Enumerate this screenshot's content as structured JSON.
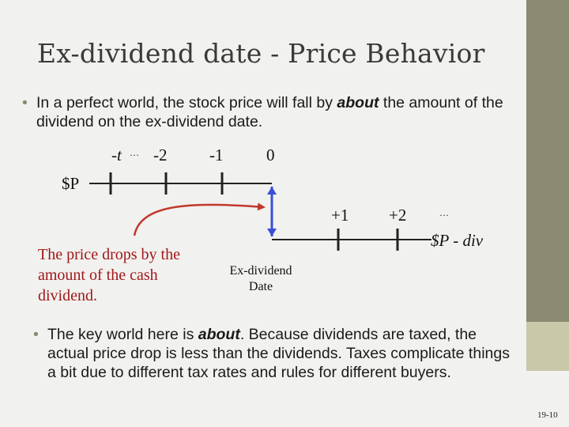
{
  "title": "Ex-dividend date - Price Behavior",
  "bullets": {
    "first": {
      "before": "In a perfect world, the stock price will fall by ",
      "emphasis": "about",
      "after": " the amount of the dividend on the ex-dividend date."
    },
    "second": {
      "before": "The key world here is ",
      "emphasis": "about",
      "after": ". Because dividends are taxed, the actual price drop is less than the dividends. Taxes complicate things a bit due to different tax rates and rules for different buyers."
    }
  },
  "timeline": {
    "upper_labels": {
      "neg_t": "-t",
      "ellipsis": "…",
      "neg2": "-2",
      "neg1": "-1",
      "zero": "0"
    },
    "upper_price": "$P",
    "lower_labels": {
      "plus1": "+1",
      "plus2": "+2",
      "ellipsis": "…"
    },
    "lower_price": "$P - div",
    "ex_date_label": "Ex-dividend Date",
    "caption": "The price drops by the amount of the cash dividend."
  },
  "page_number": "19-10",
  "colors": {
    "background": "#f1f1ef",
    "sidebar": "#8a8a70",
    "sidebar_accent": "#c9c9a9",
    "arrow_red": "#c0392b",
    "arrow_blue": "#3b4fd6",
    "caption_red": "#a01818"
  }
}
